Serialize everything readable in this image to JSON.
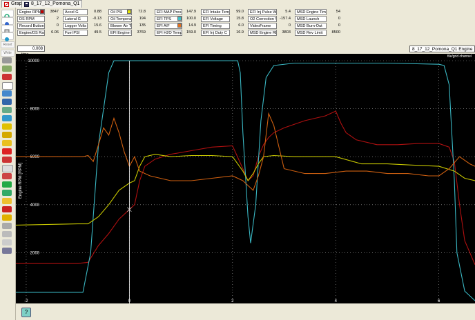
{
  "tabs": [
    {
      "label": "Graph",
      "icon": "graph-icon"
    },
    {
      "label": "8_17_12_Pomona_Q1",
      "icon": "save-icon"
    }
  ],
  "toolbar": {
    "reset_label": "Reset",
    "write_label": "Write"
  },
  "channels": [
    {
      "name": "Engine RPM",
      "value": "3847",
      "color": "#c00000"
    },
    {
      "name": "DS RPM",
      "value": "2",
      "color": ""
    },
    {
      "name": "Record Button",
      "value": "0",
      "color": ""
    },
    {
      "name": "Engine/DS Ratio",
      "value": "6.06",
      "color": ""
    },
    {
      "name": "Accel G",
      "value": "0.88",
      "color": ""
    },
    {
      "name": "Lateral G",
      "value": "-0.13",
      "color": ""
    },
    {
      "name": "Logger Volts",
      "value": "15.6",
      "color": ""
    },
    {
      "name": "Fuel PSI",
      "value": "49.5",
      "color": ""
    },
    {
      "name": "Oil PSI",
      "value": "72.8",
      "color": "#e8e800"
    },
    {
      "name": "Oil Temperature",
      "value": "194",
      "color": ""
    },
    {
      "name": "Blower Air Temp",
      "value": "135",
      "color": ""
    },
    {
      "name": "EFI Engine RPM",
      "value": "3769",
      "color": ""
    },
    {
      "name": "EFI MAP Press",
      "value": "147.9",
      "color": ""
    },
    {
      "name": "EFI TPS",
      "value": "100.0",
      "color": "#40c0c8"
    },
    {
      "name": "EFI A/F",
      "value": "14.9",
      "color": "#e07020"
    },
    {
      "name": "EFI H2O Temp",
      "value": "159.0",
      "color": ""
    },
    {
      "name": "EFI Intake Temp",
      "value": "99.0",
      "color": ""
    },
    {
      "name": "EFI Voltage",
      "value": "15.8",
      "color": ""
    },
    {
      "name": "EFI Timing",
      "value": "6.0",
      "color": ""
    },
    {
      "name": "EFI Inj Duty C",
      "value": "16.9",
      "color": ""
    },
    {
      "name": "EFI Inj Pulse W",
      "value": "5.4",
      "color": ""
    },
    {
      "name": "O2 Correction %",
      "value": "-157.4",
      "color": ""
    },
    {
      "name": "VideoFrame",
      "value": "0",
      "color": ""
    },
    {
      "name": "MSD Engine RPM",
      "value": "3803",
      "color": ""
    },
    {
      "name": "MSD Engine Timi",
      "value": "54",
      "color": ""
    },
    {
      "name": "MSD Launch",
      "value": "0",
      "color": ""
    },
    {
      "name": "MSD Burn-Out",
      "value": "0",
      "color": ""
    },
    {
      "name": "MSD Rev Limit",
      "value": "8500",
      "color": ""
    }
  ],
  "plot_header": {
    "time_value": "0.008",
    "time_label": "time",
    "file_title": "8_17_12_Pomona_Q1    Engine",
    "grid_channel_label": "file/grid channel"
  },
  "chart_data": {
    "type": "line",
    "ylabel": "Engine RPM [RPM]",
    "xlabel": "",
    "xlim": [
      -2.2,
      6.7
    ],
    "ylim": [
      0,
      10000
    ],
    "x_ticks": [
      -2,
      0,
      2,
      4,
      6
    ],
    "y_ticks": [
      2000,
      4000,
      6000,
      8000,
      10000
    ],
    "grid": true,
    "cursor_x": 0.0,
    "series": [
      {
        "name": "Engine RPM",
        "color": "#b01010",
        "x": [
          -2.2,
          -1.0,
          -0.8,
          -0.6,
          -0.4,
          -0.2,
          0.0,
          0.1,
          0.2,
          0.3,
          0.5,
          0.8,
          1.2,
          1.6,
          2.0,
          2.2,
          2.3,
          2.4,
          2.5,
          2.6,
          2.7,
          2.8,
          3.0,
          3.4,
          3.8,
          4.0,
          4.1,
          4.2,
          4.4,
          4.8,
          5.2,
          5.6,
          6.0,
          6.2,
          6.3,
          6.4,
          6.5,
          6.7
        ],
        "y": [
          1550,
          1550,
          1600,
          2300,
          2800,
          3400,
          3800,
          4000,
          5000,
          5600,
          5900,
          6100,
          6250,
          6400,
          6450,
          5500,
          5000,
          5200,
          6000,
          6500,
          6800,
          7000,
          7200,
          7500,
          7700,
          7900,
          7400,
          7000,
          6700,
          6500,
          6500,
          6550,
          6550,
          6400,
          5800,
          4000,
          2500,
          1500
        ]
      },
      {
        "name": "EFI TPS",
        "color": "#3ab8c4",
        "x": [
          -2.2,
          -0.9,
          -0.75,
          -0.6,
          -0.4,
          -0.3,
          2.1,
          2.15,
          2.2,
          2.3,
          2.35,
          2.45,
          2.55,
          2.65,
          2.8,
          3.2,
          4.0,
          5.0,
          6.0,
          6.1,
          6.2,
          6.3,
          6.35,
          6.5,
          6.7
        ],
        "y": [
          350,
          350,
          2000,
          6500,
          9500,
          10000,
          10000,
          9500,
          7000,
          3500,
          2400,
          4000,
          7500,
          9300,
          9800,
          9900,
          9900,
          9900,
          9850,
          9800,
          9000,
          5000,
          2000,
          400,
          0
        ]
      },
      {
        "name": "Oil PSI",
        "color": "#c8c800",
        "x": [
          -2.2,
          -1.0,
          -0.8,
          -0.6,
          -0.4,
          -0.2,
          0.0,
          0.1,
          0.2,
          0.3,
          0.5,
          0.8,
          1.2,
          1.6,
          2.0,
          2.2,
          2.3,
          2.4,
          2.5,
          2.6,
          2.8,
          3.2,
          4.0,
          4.5,
          5.0,
          5.5,
          6.0,
          6.3,
          6.5,
          6.7
        ],
        "y": [
          3150,
          3200,
          3200,
          3500,
          4000,
          4600,
          4900,
          5000,
          5600,
          6000,
          6100,
          6000,
          6050,
          6050,
          6000,
          5400,
          5000,
          5300,
          5700,
          6000,
          6050,
          6000,
          6000,
          5700,
          5700,
          5650,
          5600,
          5400,
          5100,
          5000
        ]
      },
      {
        "name": "EFI A/F",
        "color": "#d06010",
        "x": [
          -2.2,
          -0.9,
          -0.8,
          -0.7,
          -0.6,
          -0.5,
          -0.4,
          -0.3,
          -0.2,
          -0.1,
          0.0,
          0.1,
          0.2,
          0.4,
          0.6,
          0.8,
          1.2,
          1.6,
          2.0,
          2.2,
          2.3,
          2.4,
          2.5,
          2.6,
          2.7,
          2.8,
          3.0,
          3.4,
          3.8,
          4.2,
          4.6,
          5.0,
          5.4,
          5.8,
          6.0,
          6.2,
          6.4,
          6.6,
          6.7
        ],
        "y": [
          6000,
          6000,
          6050,
          5800,
          6500,
          7200,
          6900,
          7600,
          7000,
          6200,
          5600,
          6000,
          5400,
          5200,
          5100,
          5000,
          5000,
          5100,
          5200,
          5000,
          4800,
          4600,
          5200,
          6000,
          7800,
          7300,
          5500,
          5300,
          5300,
          5400,
          5400,
          5300,
          5300,
          5200,
          5200,
          5500,
          6000,
          5700,
          5600
        ]
      }
    ]
  }
}
